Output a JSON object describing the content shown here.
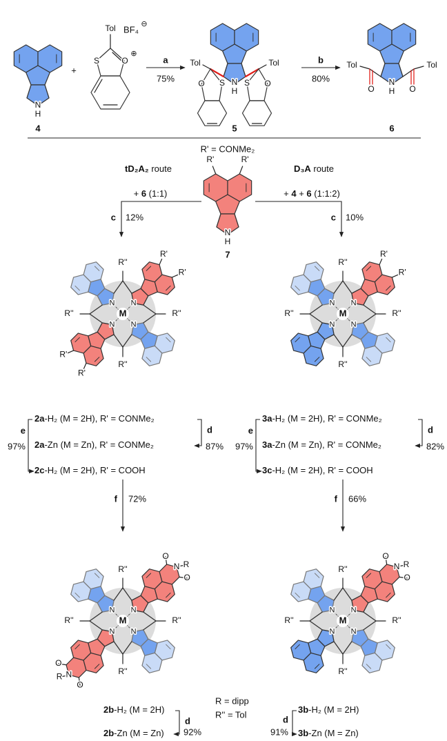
{
  "atoms": {
    "N": "N",
    "H": "H",
    "S": "S",
    "O": "O",
    "Tol": "Tol",
    "Rp": "R'",
    "Rpp": "R''",
    "R": "R",
    "M": "M",
    "plus": "⊕",
    "minus": "⊖",
    "BF4": "BF₄"
  },
  "plus_sign": "+",
  "compounds": {
    "c4": "4",
    "c5": "5",
    "c6": "6",
    "c7": "7"
  },
  "steps": {
    "a": {
      "letter": "a",
      "yield": "75%"
    },
    "b": {
      "letter": "b",
      "yield": "80%"
    },
    "c_left": {
      "letter": "c",
      "yield": "12%"
    },
    "c_right": {
      "letter": "c",
      "yield": "10%"
    },
    "d_2a": {
      "letter": "d",
      "yield": "87%"
    },
    "e_2": {
      "letter": "e",
      "yield": "97%"
    },
    "d_3a": {
      "letter": "d",
      "yield": "82%"
    },
    "e_3": {
      "letter": "e",
      "yield": "97%"
    },
    "f_left": {
      "letter": "f",
      "yield": "72%"
    },
    "f_right": {
      "letter": "f",
      "yield": "66%"
    },
    "d_2b": {
      "letter": "d",
      "yield": "92%"
    },
    "d_3b": {
      "letter": "d",
      "yield": "91%"
    }
  },
  "definition": "R' = CONMe₂",
  "routes": [
    {
      "name": [
        {
          "t": "tD₂A₂",
          "b": true
        },
        {
          "t": " route"
        }
      ],
      "reagents": [
        {
          "t": "+ "
        },
        {
          "t": "6",
          "b": true
        },
        {
          "t": " (1:1)"
        }
      ]
    },
    {
      "name": [
        {
          "t": "D₃A",
          "b": true
        },
        {
          "t": " route"
        }
      ],
      "reagents": [
        {
          "t": "+ "
        },
        {
          "t": "4",
          "b": true
        },
        {
          "t": " + "
        },
        {
          "t": "6",
          "b": true
        },
        {
          "t": " (1:1:2)"
        }
      ]
    }
  ],
  "products": {
    "p2aH2": [
      {
        "t": "2a",
        "b": true
      },
      {
        "t": "-H₂ (M = 2H), R' = CONMe₂"
      }
    ],
    "p2aZn": [
      {
        "t": "2a",
        "b": true
      },
      {
        "t": "-Zn (M = Zn), R' = CONMe₂"
      }
    ],
    "p2cH2": [
      {
        "t": "2c",
        "b": true
      },
      {
        "t": "-H₂ (M = 2H), R' = COOH"
      }
    ],
    "p3aH2": [
      {
        "t": "3a",
        "b": true
      },
      {
        "t": "-H₂ (M = 2H), R' = CONMe₂"
      }
    ],
    "p3aZn": [
      {
        "t": "3a",
        "b": true
      },
      {
        "t": "-Zn (M = Zn), R' = CONMe₂"
      }
    ],
    "p3cH2": [
      {
        "t": "3c",
        "b": true
      },
      {
        "t": "-H₂ (M = 2H), R' = COOH"
      }
    ],
    "p2bH2": [
      {
        "t": "2b",
        "b": true
      },
      {
        "t": "-H₂ (M = 2H)"
      }
    ],
    "p2bZn": [
      {
        "t": "2b",
        "b": true
      },
      {
        "t": "-Zn (M = Zn)"
      }
    ],
    "p3bH2": [
      {
        "t": "3b",
        "b": true
      },
      {
        "t": "-H₂ (M = 2H)"
      }
    ],
    "p3bZn": [
      {
        "t": "3b",
        "b": true
      },
      {
        "t": "-Zn (M = Zn)"
      }
    ]
  },
  "footnotes": [
    "R = dipp",
    "R'' = Tol"
  ],
  "colors": {
    "step": "#2b8ee0",
    "red": "#f3827c",
    "blue": "#74a3ef",
    "pale": "#c9dbf7",
    "core": "#dcdcdc",
    "metal": "#e0201b",
    "bond_red": "#e0201b"
  }
}
